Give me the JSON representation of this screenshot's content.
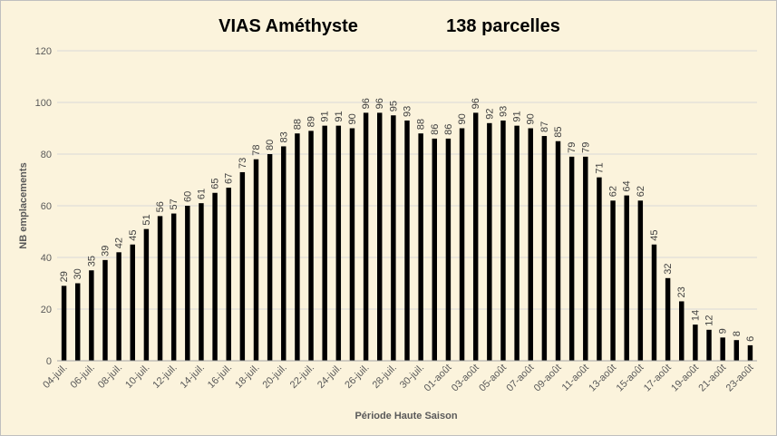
{
  "chart_data": {
    "type": "bar",
    "title": "VIAS Améthyste",
    "subtitle": "138 parcelles",
    "xlabel": "Période Haute Saison",
    "ylabel": "NB emplacements",
    "ylim": [
      0,
      120
    ],
    "yticks": [
      0,
      20,
      40,
      60,
      80,
      100,
      120
    ],
    "grid": true,
    "legend": "none",
    "bar_color": "#000000",
    "x_tick_labels": [
      "04-juil.",
      "06-juil.",
      "08-juil.",
      "10-juil.",
      "12-juil.",
      "14-juil.",
      "16-juil.",
      "18-juil.",
      "20-juil.",
      "22-juil.",
      "24-juil.",
      "26-juil.",
      "28-juil.",
      "30-juil.",
      "01-août",
      "03-août",
      "05-août",
      "07-août",
      "09-août",
      "11-août",
      "13-août",
      "15-août",
      "17-août",
      "19-août",
      "21-août",
      "23-août"
    ],
    "values": [
      29,
      30,
      35,
      39,
      42,
      45,
      51,
      56,
      57,
      60,
      61,
      65,
      67,
      73,
      78,
      80,
      83,
      88,
      89,
      91,
      91,
      90,
      96,
      96,
      95,
      93,
      88,
      86,
      86,
      90,
      96,
      92,
      93,
      91,
      90,
      87,
      85,
      79,
      79,
      71,
      62,
      64,
      62,
      45,
      32,
      23,
      14,
      12,
      9,
      8,
      6
    ]
  }
}
